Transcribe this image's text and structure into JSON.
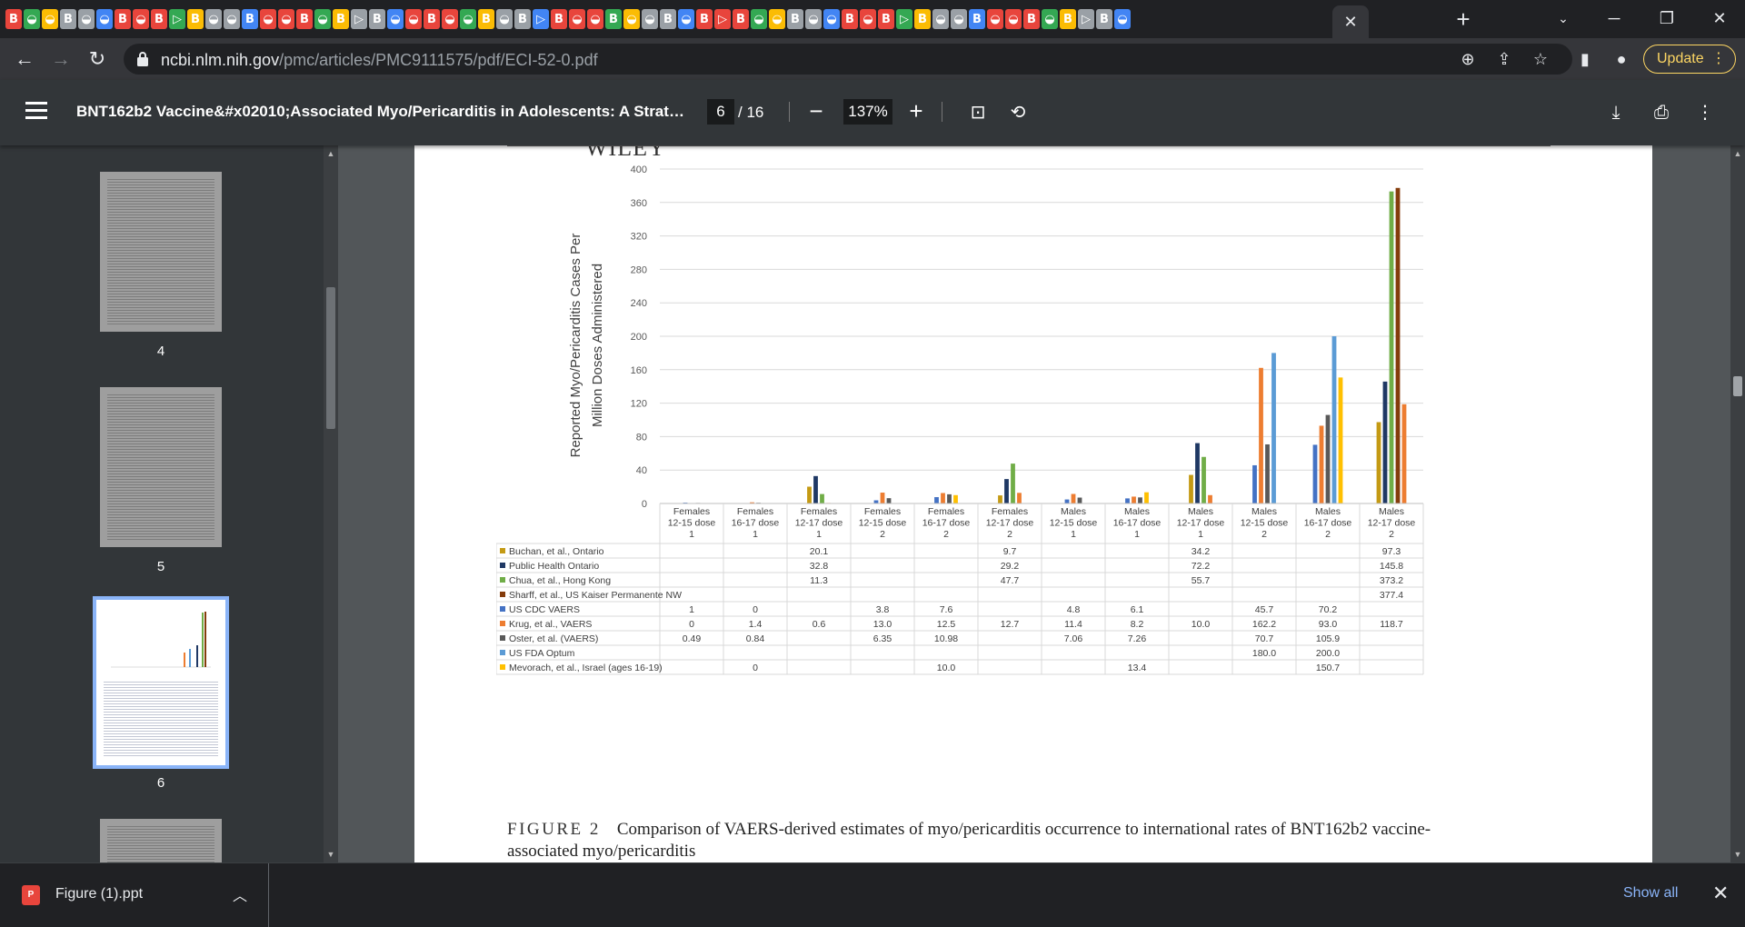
{
  "browser": {
    "active_tab_close": "✕",
    "new_tab": "+",
    "url_host": "ncbi.nlm.nih.gov",
    "url_path": "/pmc/articles/PMC9111575/pdf/ECI-52-0.pdf",
    "update_label": "Update",
    "update_menu": "⋮",
    "accent_color": "#fdd663"
  },
  "pdf_toolbar": {
    "title": "BNT162b2 Vaccine&#x02010;Associated Myo/Pericarditis in Adolescents: A Stratifi...",
    "current_page": "6",
    "page_total": "/ 16",
    "zoom": "137%",
    "zoom_out": "−",
    "zoom_in": "+"
  },
  "sidebar": {
    "thumbnails": [
      {
        "label": "4"
      },
      {
        "label": "5"
      },
      {
        "label": "6",
        "selected": true
      }
    ]
  },
  "page": {
    "journal_logo": "WILEY",
    "figure_label": "FIGURE 2",
    "figure_caption": "Comparison of VAERS-derived estimates of myo/pericarditis occurrence to international rates of BNT162b2 vaccine-",
    "figure_caption_cont": "associated myo/pericarditis"
  },
  "chart_data": {
    "type": "bar",
    "title": "",
    "ylabel": "Reported Myo/Pericarditis Cases Per Million Doses Administered",
    "ylabel_lines": [
      "Reported Myo/Pericarditis Cases Per",
      "Million Doses Administered"
    ],
    "ylim": [
      0,
      400
    ],
    "yticks": [
      0,
      40,
      80,
      120,
      160,
      200,
      240,
      280,
      320,
      360,
      400
    ],
    "grid": true,
    "categories": [
      [
        "Females",
        "12-15 dose",
        "1"
      ],
      [
        "Females",
        "16-17 dose",
        "1"
      ],
      [
        "Females",
        "12-17 dose",
        "1"
      ],
      [
        "Females",
        "12-15 dose",
        "2"
      ],
      [
        "Females",
        "16-17 dose",
        "2"
      ],
      [
        "Females",
        "12-17 dose",
        "2"
      ],
      [
        "Males",
        "12-15 dose",
        "1"
      ],
      [
        "Males",
        "16-17 dose",
        "1"
      ],
      [
        "Males",
        "12-17 dose",
        "1"
      ],
      [
        "Males",
        "12-15 dose",
        "2"
      ],
      [
        "Males",
        "16-17 dose",
        "2"
      ],
      [
        "Males",
        "12-17 dose",
        "2"
      ]
    ],
    "series": [
      {
        "name": "Buchan, et al., Ontario",
        "color": "#c49a14",
        "values": [
          null,
          null,
          20.1,
          null,
          null,
          9.7,
          null,
          null,
          34.2,
          null,
          null,
          97.3
        ],
        "labels": [
          "",
          "",
          "20.1",
          "",
          "",
          "9.7",
          "",
          "",
          "34.2",
          "",
          "",
          "97.3"
        ]
      },
      {
        "name": "Public Health Ontario",
        "color": "#1f3864",
        "values": [
          null,
          null,
          32.8,
          null,
          null,
          29.2,
          null,
          null,
          72.2,
          null,
          null,
          145.8
        ],
        "labels": [
          "",
          "",
          "32.8",
          "",
          "",
          "29.2",
          "",
          "",
          "72.2",
          "",
          "",
          "145.8"
        ]
      },
      {
        "name": "Chua, et al., Hong Kong",
        "color": "#70ad47",
        "values": [
          null,
          null,
          11.3,
          null,
          null,
          47.7,
          null,
          null,
          55.7,
          null,
          null,
          373.2
        ],
        "labels": [
          "",
          "",
          "11.3",
          "",
          "",
          "47.7",
          "",
          "",
          "55.7",
          "",
          "",
          "373.2"
        ]
      },
      {
        "name": "Sharff, et al., US Kaiser Permanente NW",
        "color": "#843c0c",
        "values": [
          null,
          null,
          null,
          null,
          null,
          null,
          null,
          null,
          null,
          null,
          null,
          377.4
        ],
        "labels": [
          "",
          "",
          "",
          "",
          "",
          "",
          "",
          "",
          "",
          "",
          "",
          "377.4"
        ]
      },
      {
        "name": "US CDC VAERS",
        "color": "#4472c4",
        "values": [
          1,
          0,
          null,
          3.8,
          7.6,
          null,
          4.8,
          6.1,
          null,
          45.7,
          70.2,
          null
        ],
        "labels": [
          "1",
          "0",
          "",
          "3.8",
          "7.6",
          "",
          "4.8",
          "6.1",
          "",
          "45.7",
          "70.2",
          ""
        ]
      },
      {
        "name": "Krug, et al., VAERS",
        "color": "#ed7d31",
        "values": [
          0,
          1.4,
          0.6,
          13.0,
          12.5,
          12.7,
          11.4,
          8.2,
          10.0,
          162.2,
          93.0,
          118.7
        ],
        "labels": [
          "0",
          "1.4",
          "0.6",
          "13.0",
          "12.5",
          "12.7",
          "11.4",
          "8.2",
          "10.0",
          "162.2",
          "93.0",
          "118.7"
        ]
      },
      {
        "name": "Oster, et al.  (VAERS)",
        "color": "#595959",
        "values": [
          0.49,
          0.84,
          null,
          6.35,
          10.98,
          null,
          7.06,
          7.26,
          null,
          70.7,
          105.9,
          null
        ],
        "labels": [
          "0.49",
          "0.84",
          "",
          "6.35",
          "10.98",
          "",
          "7.06",
          "7.26",
          "",
          "70.7",
          "105.9",
          ""
        ]
      },
      {
        "name": "US FDA Optum",
        "color": "#5b9bd5",
        "values": [
          null,
          null,
          null,
          null,
          null,
          null,
          null,
          null,
          null,
          180.0,
          200.0,
          null
        ],
        "labels": [
          "",
          "",
          "",
          "",
          "",
          "",
          "",
          "",
          "",
          "180.0",
          "200.0",
          ""
        ]
      },
      {
        "name": "Mevorach, et al., Israel (ages 16-19)",
        "color": "#ffc000",
        "values": [
          null,
          0,
          null,
          null,
          10.0,
          null,
          null,
          13.4,
          null,
          null,
          150.7,
          null
        ],
        "labels": [
          "",
          "0",
          "",
          "",
          "10.0",
          "",
          "",
          "13.4",
          "",
          "",
          "150.7",
          ""
        ]
      }
    ]
  },
  "downloads": {
    "file_name": "Figure (1).ppt",
    "file_icon_text": "P",
    "show_all": "Show all",
    "close": "✕"
  }
}
